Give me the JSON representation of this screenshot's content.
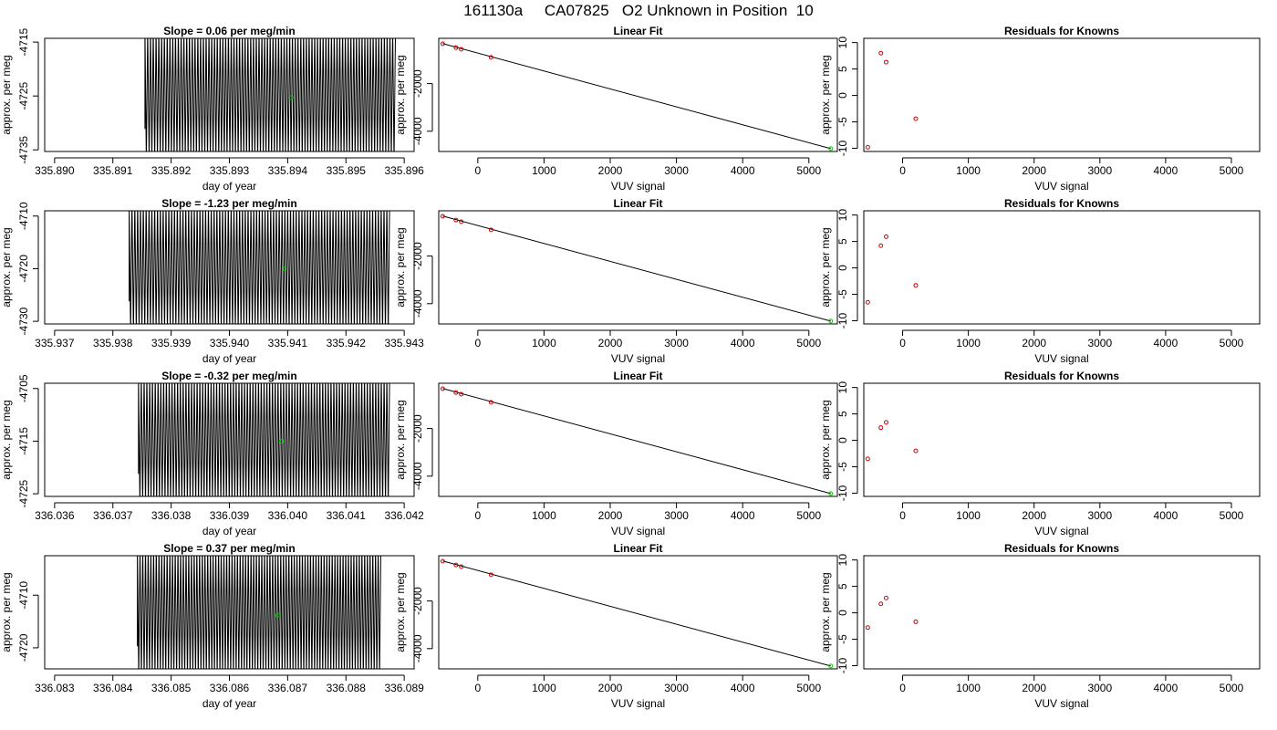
{
  "page": {
    "title": "161130a     CA07825   O2 Unknown in Position  10"
  },
  "style": {
    "trace_color": "#000000",
    "known_point_color": "#cc0000",
    "unknown_point_color": "#00cc00",
    "fit_line_color": "#000000"
  },
  "chart_data": [
    {
      "type": "line",
      "id": "trace-1",
      "title": "Slope =  0.06  per meg/min",
      "xlabel": "day of year",
      "ylabel": "approx. per meg",
      "xlim": [
        335.88983,
        335.89617
      ],
      "ylim": [
        -4735.3,
        -4714.3
      ],
      "xticks": [
        "335.890",
        "335.891",
        "335.892",
        "335.893",
        "335.894",
        "335.895",
        "335.896"
      ],
      "yticks": [
        "-4715",
        "-4725",
        "-4735"
      ],
      "trace": {
        "x_start": 335.89155,
        "x_end": 335.89585,
        "y_low": -4735.3,
        "y_high": -4714.3,
        "points_below": [
          -4728,
          -4732
        ],
        "peaks": 90
      },
      "unknown_mean": {
        "x": 335.89406,
        "y": -4725.3
      }
    },
    {
      "type": "scatter",
      "id": "fit-1",
      "title": "Linear Fit",
      "xlabel": "VUV signal",
      "ylabel": "",
      "xlim": [
        -590,
        5430
      ],
      "ylim": [
        -4850,
        -100
      ],
      "xticks": [
        "0",
        "1000",
        "2000",
        "3000",
        "4000",
        "5000"
      ],
      "yticks": [
        "-2000",
        "-4000"
      ],
      "knowns": {
        "x": [
          -530,
          -330,
          -250,
          200
        ],
        "y": [
          -330,
          -490,
          -560,
          -900
        ]
      },
      "unknown": {
        "x": 5330,
        "y": -4730
      },
      "fit": {
        "x": [
          -530,
          5330
        ],
        "y": [
          -320,
          -4730
        ]
      }
    },
    {
      "type": "scatter",
      "id": "resid-1",
      "title": "Residuals for Knowns",
      "xlabel": "VUV signal",
      "ylabel": "",
      "xlim": [
        -590,
        5430
      ],
      "ylim": [
        -10.6,
        10.8
      ],
      "xticks": [
        "0",
        "1000",
        "2000",
        "3000",
        "4000",
        "5000"
      ],
      "yticks": [
        "-10",
        "-5",
        "0",
        "5",
        "10"
      ],
      "knowns": {
        "x": [
          -530,
          -330,
          -250,
          200
        ],
        "y": [
          -9.8,
          8.0,
          6.3,
          -4.4
        ]
      }
    },
    {
      "type": "line",
      "id": "trace-2",
      "title": "Slope =  -1.23  per meg/min",
      "xlabel": "day of year",
      "ylabel": "approx. per meg",
      "xlim": [
        335.93683,
        335.94317
      ],
      "ylim": [
        -4730.5,
        -4709.0
      ],
      "xticks": [
        "335.937",
        "335.938",
        "335.939",
        "335.940",
        "335.941",
        "335.942",
        "335.943"
      ],
      "yticks": [
        "-4710",
        "-4720",
        "-4730"
      ],
      "trace": {
        "x_start": 335.93828,
        "x_end": 335.94275,
        "y_low": -4730.5,
        "y_high": -4709.0,
        "peaks": 92
      },
      "unknown_mean": {
        "x": 335.94094,
        "y": -4720.0
      }
    },
    {
      "type": "scatter",
      "id": "fit-2",
      "title": "Linear Fit",
      "xlabel": "VUV signal",
      "ylabel": "",
      "xlim": [
        -590,
        5430
      ],
      "ylim": [
        -4850,
        -100
      ],
      "xticks": [
        "0",
        "1000",
        "2000",
        "3000",
        "4000",
        "5000"
      ],
      "yticks": [
        "-2000",
        "-4000"
      ],
      "knowns": {
        "x": [
          -530,
          -330,
          -250,
          200
        ],
        "y": [
          -330,
          -490,
          -560,
          -900
        ]
      },
      "unknown": {
        "x": 5330,
        "y": -4730
      },
      "fit": {
        "x": [
          -530,
          5330
        ],
        "y": [
          -320,
          -4730
        ]
      }
    },
    {
      "type": "scatter",
      "id": "resid-2",
      "title": "Residuals for Knowns",
      "xlabel": "VUV signal",
      "ylabel": "",
      "xlim": [
        -590,
        5430
      ],
      "ylim": [
        -10.6,
        10.8
      ],
      "xticks": [
        "0",
        "1000",
        "2000",
        "3000",
        "4000",
        "5000"
      ],
      "yticks": [
        "-10",
        "-5",
        "0",
        "5",
        "10"
      ],
      "knowns": {
        "x": [
          -530,
          -330,
          -250,
          200
        ],
        "y": [
          -6.5,
          4.2,
          5.9,
          -3.3
        ]
      }
    },
    {
      "type": "line",
      "id": "trace-3",
      "title": "Slope =  -0.32  per meg/min",
      "xlabel": "day of year",
      "ylabel": "approx. per meg",
      "xlim": [
        336.03583,
        336.04217
      ],
      "ylim": [
        -4725.5,
        -4704.0
      ],
      "xticks": [
        "336.036",
        "336.037",
        "336.038",
        "336.039",
        "336.040",
        "336.041",
        "336.042"
      ],
      "yticks": [
        "-4705",
        "-4715",
        "-4725"
      ],
      "trace": {
        "x_start": 336.03744,
        "x_end": 336.04175,
        "y_low": -4725.5,
        "y_high": -4704.0,
        "peaks": 90
      },
      "unknown_mean": {
        "x": 336.03989,
        "y": -4715.0
      }
    },
    {
      "type": "scatter",
      "id": "fit-3",
      "title": "Linear Fit",
      "xlabel": "VUV signal",
      "ylabel": "",
      "xlim": [
        -590,
        5430
      ],
      "ylim": [
        -4850,
        -100
      ],
      "xticks": [
        "0",
        "1000",
        "2000",
        "3000",
        "4000",
        "5000"
      ],
      "yticks": [
        "-2000",
        "-4000"
      ],
      "knowns": {
        "x": [
          -530,
          -330,
          -250,
          200
        ],
        "y": [
          -330,
          -490,
          -560,
          -900
        ]
      },
      "unknown": {
        "x": 5330,
        "y": -4730
      },
      "fit": {
        "x": [
          -530,
          5330
        ],
        "y": [
          -320,
          -4730
        ]
      }
    },
    {
      "type": "scatter",
      "id": "resid-3",
      "title": "Residuals for Knowns",
      "xlabel": "VUV signal",
      "ylabel": "",
      "xlim": [
        -590,
        5430
      ],
      "ylim": [
        -10.6,
        10.8
      ],
      "xticks": [
        "0",
        "1000",
        "2000",
        "3000",
        "4000",
        "5000"
      ],
      "yticks": [
        "-10",
        "-5",
        "0",
        "5",
        "10"
      ],
      "knowns": {
        "x": [
          -530,
          -330,
          -250,
          200
        ],
        "y": [
          -3.5,
          2.4,
          3.4,
          -2.0
        ]
      }
    },
    {
      "type": "line",
      "id": "trace-4",
      "title": "Slope =  0.37  per meg/min",
      "xlabel": "day of year",
      "ylabel": "approx. per meg",
      "xlim": [
        336.08283,
        336.08917
      ],
      "ylim": [
        -4724.0,
        -4702.5
      ],
      "xticks": [
        "336.083",
        "336.084",
        "336.085",
        "336.086",
        "336.087",
        "336.088",
        "336.089"
      ],
      "yticks": [
        "-4710",
        "-4720"
      ],
      "trace": {
        "x_start": 336.08442,
        "x_end": 336.0886,
        "y_low": -4724.0,
        "y_high": -4702.5,
        "peaks": 90
      },
      "unknown_mean": {
        "x": 336.08683,
        "y": -4713.8
      }
    },
    {
      "type": "scatter",
      "id": "fit-4",
      "title": "Linear Fit",
      "xlabel": "VUV signal",
      "ylabel": "",
      "xlim": [
        -590,
        5430
      ],
      "ylim": [
        -4850,
        -100
      ],
      "xticks": [
        "0",
        "1000",
        "2000",
        "3000",
        "4000",
        "5000"
      ],
      "yticks": [
        "-2000",
        "-4000"
      ],
      "knowns": {
        "x": [
          -530,
          -330,
          -250,
          200
        ],
        "y": [
          -330,
          -490,
          -560,
          -900
        ]
      },
      "unknown": {
        "x": 5330,
        "y": -4730
      },
      "fit": {
        "x": [
          -530,
          5330
        ],
        "y": [
          -320,
          -4730
        ]
      }
    },
    {
      "type": "scatter",
      "id": "resid-4",
      "title": "Residuals for Knowns",
      "xlabel": "VUV signal",
      "ylabel": "",
      "xlim": [
        -590,
        5430
      ],
      "ylim": [
        -10.6,
        10.8
      ],
      "xticks": [
        "0",
        "1000",
        "2000",
        "3000",
        "4000",
        "5000"
      ],
      "yticks": [
        "-10",
        "-5",
        "0",
        "5",
        "10"
      ],
      "knowns": {
        "x": [
          -530,
          -330,
          -250,
          200
        ],
        "y": [
          -2.8,
          1.7,
          2.8,
          -1.7
        ]
      }
    }
  ]
}
